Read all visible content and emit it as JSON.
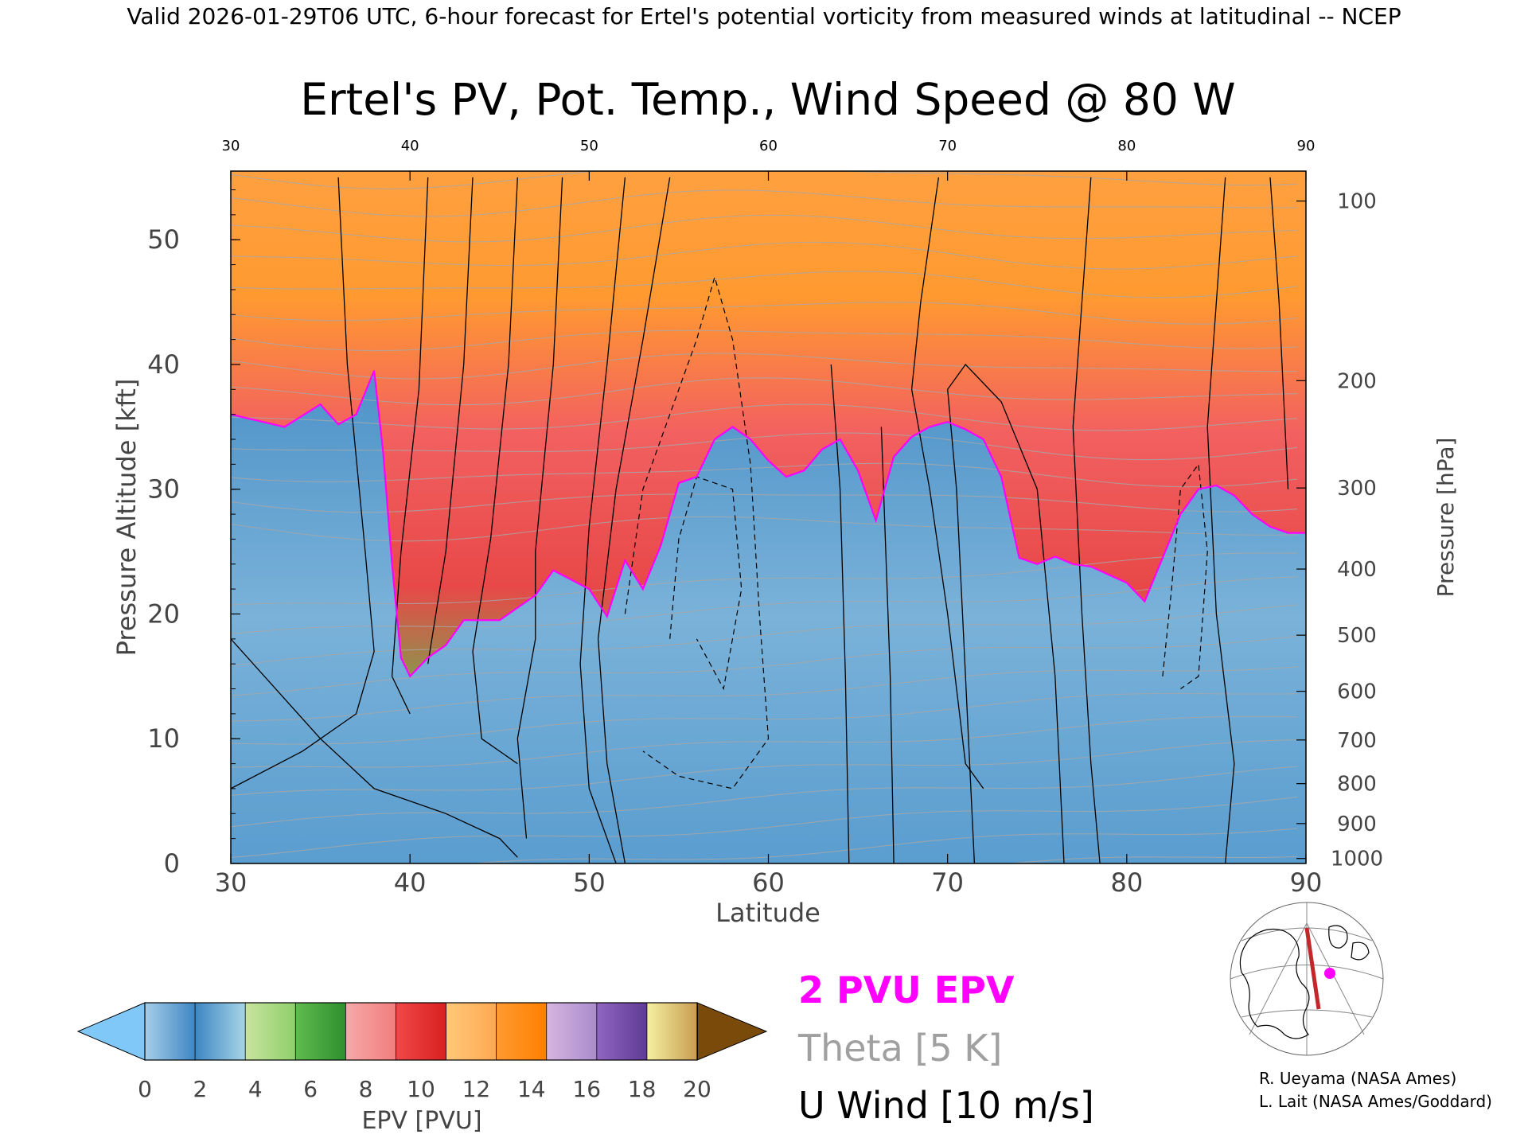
{
  "header": {
    "valid_line": "Valid 2026-01-29T06 UTC, 6-hour forecast for Ertel's potential vorticity from measured winds at latitudinal -- NCEP"
  },
  "chart_data": {
    "type": "heatmap",
    "title": "Ertel's PV, Pot. Temp., Wind Speed @ 80 W",
    "xlabel": "Latitude",
    "ylabel_left": "Pressure Altitude [kft]",
    "ylabel_right": "Pressure [hPa]",
    "xlim": [
      30,
      90
    ],
    "ylim": [
      0,
      55.5
    ],
    "x_ticks": [
      "30",
      "40",
      "50",
      "60",
      "70",
      "80",
      "90"
    ],
    "top_ticks": [
      "30",
      "40",
      "50",
      "60",
      "70",
      "80",
      "90"
    ],
    "y_ticks": [
      "0",
      "10",
      "20",
      "30",
      "40",
      "50"
    ],
    "right_ticks": [
      {
        "label": "100",
        "kft": 53.1
      },
      {
        "label": "200",
        "kft": 38.7
      },
      {
        "label": "300",
        "kft": 30.1
      },
      {
        "label": "400",
        "kft": 23.6
      },
      {
        "label": "500",
        "kft": 18.3
      },
      {
        "label": "600",
        "kft": 13.8
      },
      {
        "label": "700",
        "kft": 9.9
      },
      {
        "label": "800",
        "kft": 6.4
      },
      {
        "label": "900",
        "kft": 3.2
      },
      {
        "label": "1000",
        "kft": 0.4
      }
    ],
    "colorbar": {
      "label": "EPV [PVU]",
      "ticks": [
        "0",
        "2",
        "4",
        "6",
        "8",
        "10",
        "12",
        "14",
        "16",
        "18",
        "20"
      ],
      "underflow_color": "#7fc8f8",
      "overflow_color": "#7a4a0a",
      "segments": [
        [
          "#a6cde9",
          "#3d86c3"
        ],
        [
          "#3d86c3",
          "#a8d5e8"
        ],
        [
          "#c9e4a0",
          "#8fcf6a"
        ],
        [
          "#5fbb4e",
          "#2e8f2e"
        ],
        [
          "#f5a9a9",
          "#f27d7d"
        ],
        [
          "#f04848",
          "#d82020"
        ],
        [
          "#ffc87a",
          "#ffa850"
        ],
        [
          "#ff9a30",
          "#ff7f00"
        ],
        [
          "#d7b5e0",
          "#a98bcc"
        ],
        [
          "#9066c0",
          "#5f3a96"
        ],
        [
          "#f5f0a0",
          "#c89b50"
        ]
      ]
    },
    "tropopause_kft": [
      [
        30,
        36
      ],
      [
        33,
        35
      ],
      [
        35,
        36.8
      ],
      [
        36,
        35.2
      ],
      [
        37,
        36
      ],
      [
        38,
        39.5
      ],
      [
        38.5,
        33
      ],
      [
        39,
        24
      ],
      [
        39.5,
        16.5
      ],
      [
        40,
        15
      ],
      [
        41,
        16.5
      ],
      [
        42,
        17.5
      ],
      [
        43,
        19.5
      ],
      [
        45,
        19.5
      ],
      [
        47,
        21.5
      ],
      [
        48,
        23.5
      ],
      [
        50,
        22
      ],
      [
        51,
        19.8
      ],
      [
        52,
        24.3
      ],
      [
        53,
        22
      ],
      [
        54,
        25.5
      ],
      [
        55,
        30.5
      ],
      [
        56,
        31
      ],
      [
        57,
        34
      ],
      [
        58,
        35
      ],
      [
        59,
        34
      ],
      [
        60,
        32.3
      ],
      [
        61,
        31
      ],
      [
        62,
        31.5
      ],
      [
        63,
        33.2
      ],
      [
        64,
        34
      ],
      [
        65,
        31.5
      ],
      [
        66,
        27.5
      ],
      [
        67,
        32.6
      ],
      [
        68,
        34.2
      ],
      [
        69,
        35
      ],
      [
        70,
        35.4
      ],
      [
        71,
        34.8
      ],
      [
        72,
        34
      ],
      [
        73,
        31
      ],
      [
        74,
        24.5
      ],
      [
        75,
        24
      ],
      [
        76,
        24.6
      ],
      [
        77,
        24
      ],
      [
        78,
        23.8
      ],
      [
        80,
        22.5
      ],
      [
        81,
        21
      ],
      [
        82,
        24.5
      ],
      [
        83,
        28
      ],
      [
        84,
        30
      ],
      [
        85,
        30.3
      ],
      [
        86,
        29.5
      ],
      [
        87,
        28
      ],
      [
        88,
        27
      ],
      [
        89,
        26.5
      ],
      [
        90,
        26.5
      ]
    ],
    "legend": {
      "pv_contour": "2 PVU EPV",
      "theta": "Theta [5 K]",
      "u_wind": "U Wind [10 m/s]"
    }
  },
  "credits": {
    "line1": "R. Ueyama (NASA Ames)",
    "line2": "L. Lait (NASA Ames/Goddard)"
  },
  "colors": {
    "pv_contour": "#ff00ff",
    "theta": "#a0a0a0",
    "inset_path": "#c0282a"
  }
}
